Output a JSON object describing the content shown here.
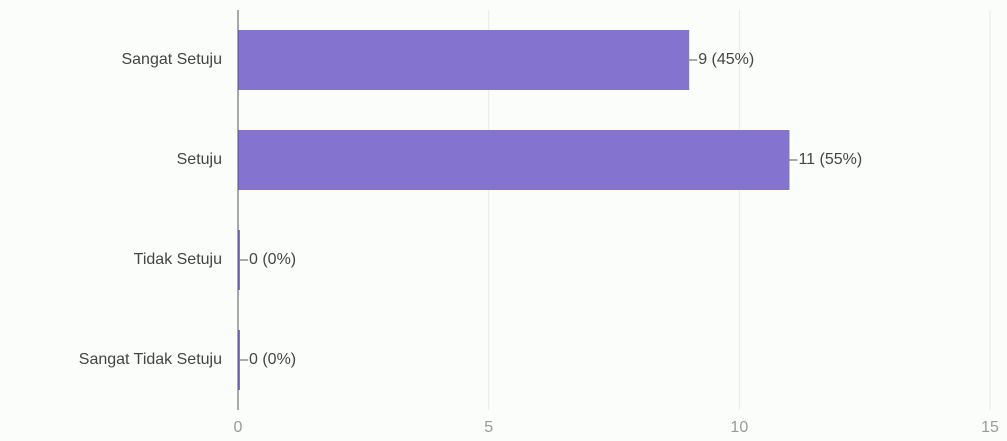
{
  "chart_data": {
    "type": "bar",
    "orientation": "horizontal",
    "categories": [
      "Sangat Setuju",
      "Setuju",
      "Tidak Setuju",
      "Sangat Tidak Setuju"
    ],
    "values": [
      9,
      11,
      0,
      0
    ],
    "value_labels": [
      "9 (45%)",
      "11 (55%)",
      "0 (0%)",
      "0 (0%)"
    ],
    "color": "#8474cf",
    "xlim": [
      0,
      15
    ],
    "xticks": [
      0,
      5,
      10,
      15
    ],
    "grid": true
  }
}
